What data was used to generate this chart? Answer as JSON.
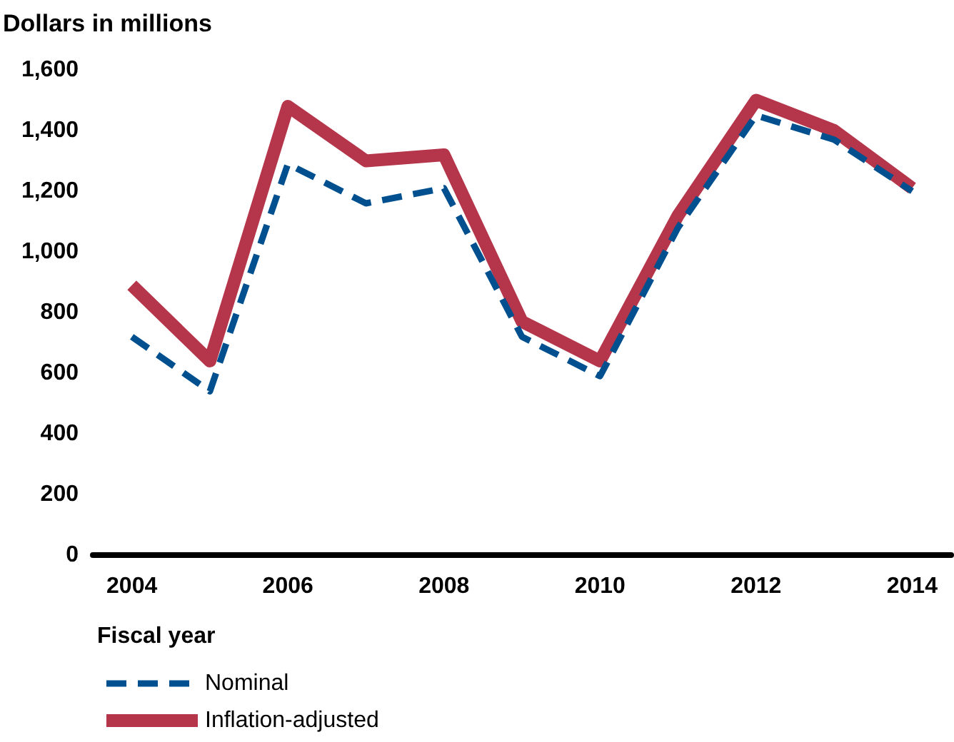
{
  "chart_data": {
    "type": "line",
    "ylabel": "Dollars in millions",
    "xlabel": "Fiscal year",
    "x": [
      2004,
      2005,
      2006,
      2007,
      2008,
      2009,
      2010,
      2011,
      2012,
      2013,
      2014
    ],
    "series": [
      {
        "name": "Nominal",
        "color": "#00508f",
        "line_style": "dashed",
        "values": [
          720,
          540,
          1290,
          1160,
          1210,
          720,
          590,
          1080,
          1450,
          1370,
          1200
        ]
      },
      {
        "name": "Inflation-adjusted",
        "color": "#b5364b",
        "line_style": "solid",
        "values": [
          890,
          640,
          1480,
          1300,
          1320,
          770,
          640,
          1120,
          1500,
          1400,
          1210
        ]
      }
    ],
    "xlim": [
      2003.5,
      2014.5
    ],
    "xticks": [
      2004,
      2006,
      2008,
      2010,
      2012,
      2014
    ],
    "ylim": [
      0,
      1600
    ],
    "yticks": [
      0,
      200,
      400,
      600,
      800,
      {
        "value": 1000,
        "label": "1,000"
      },
      {
        "value": 1200,
        "label": "1,200"
      },
      {
        "value": 1400,
        "label": "1,400"
      },
      {
        "value": 1600,
        "label": "1,600"
      }
    ],
    "grid": false,
    "legend": "bottom left",
    "marker": "none"
  }
}
